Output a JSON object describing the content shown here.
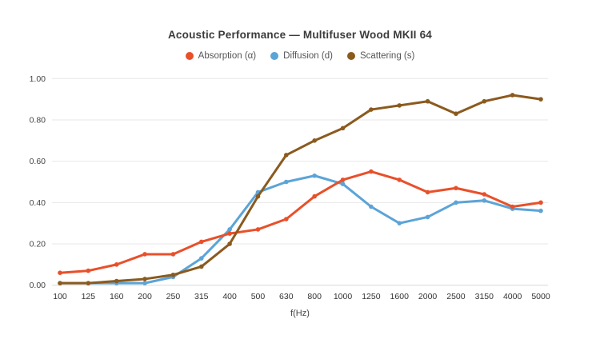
{
  "header": {
    "title": "Acoustic Performance — Multifuser Wood MKII 64"
  },
  "chart_data": {
    "type": "line",
    "title": "Acoustic Performance — Multifuser Wood MKII 64",
    "xlabel": "f(Hz)",
    "ylabel": "",
    "ylim": [
      0,
      1.0
    ],
    "yticks": [
      0.0,
      0.2,
      0.4,
      0.6,
      0.8,
      1.0
    ],
    "ytick_labels": [
      "0.00",
      "0.20",
      "0.40",
      "0.60",
      "0.80",
      "1.00"
    ],
    "categories": [
      "100",
      "125",
      "160",
      "200",
      "250",
      "315",
      "400",
      "500",
      "630",
      "800",
      "1000",
      "1250",
      "1600",
      "2000",
      "2500",
      "3150",
      "4000",
      "5000"
    ],
    "grid": "horizontal",
    "legend_position": "top",
    "series": [
      {
        "name": "Absorption (α)",
        "color": "#e8502a",
        "values": [
          0.06,
          0.07,
          0.1,
          0.15,
          0.15,
          0.21,
          0.25,
          0.27,
          0.32,
          0.43,
          0.51,
          0.55,
          0.51,
          0.45,
          0.47,
          0.44,
          0.38,
          0.4
        ]
      },
      {
        "name": "Diffusion (d)",
        "color": "#5ba4d8",
        "values": [
          0.01,
          0.01,
          0.01,
          0.01,
          0.04,
          0.13,
          0.27,
          0.45,
          0.5,
          0.53,
          0.49,
          0.38,
          0.3,
          0.33,
          0.4,
          0.41,
          0.37,
          0.36
        ]
      },
      {
        "name": "Scattering (s)",
        "color": "#8b5a1e",
        "values": [
          0.01,
          0.01,
          0.02,
          0.03,
          0.05,
          0.09,
          0.2,
          0.43,
          0.63,
          0.7,
          0.76,
          0.85,
          0.87,
          0.89,
          0.83,
          0.89,
          0.92,
          0.9
        ]
      }
    ],
    "colors": {
      "grid_line": "#e7e7e7",
      "baseline": "#d8d8d8",
      "tick_text": "#444444",
      "title_text": "#3b3b3b"
    }
  }
}
